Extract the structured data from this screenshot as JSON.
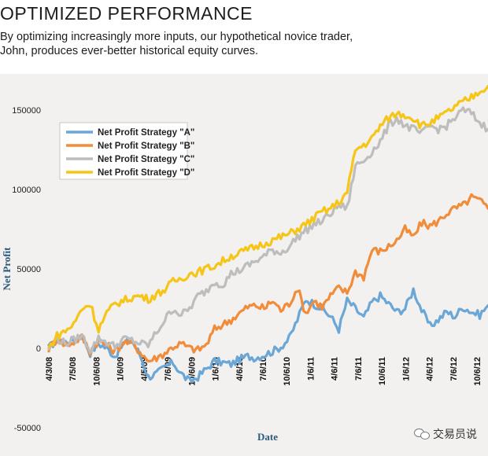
{
  "header": {
    "title": "OPTIMIZED PERFORMANCE",
    "subtitle": "By optimizing increasingly more inputs, our hypothetical novice trader, John, produces ever-better historical equity curves."
  },
  "watermark": {
    "text": "交易员说",
    "icon": "wechat-icon"
  },
  "chart_data": {
    "type": "line",
    "xlabel": "Date",
    "ylabel": "Net Profit",
    "ylim": [
      -50000,
      160000
    ],
    "yticks": [
      -50000,
      0,
      50000,
      100000,
      150000
    ],
    "yticklabels": [
      "-50000",
      "0",
      "50000",
      "100000",
      "150000"
    ],
    "xticks": [
      "4/3/08",
      "7/5/08",
      "10/6/08",
      "1/6/09",
      "4/5/09",
      "7/6/09",
      "10/6/09",
      "1/6/10",
      "4/6/10",
      "7/6/10",
      "10/6/10",
      "1/6/11",
      "4/6/11",
      "7/6/11",
      "10/6/11",
      "1/6/12",
      "4/6/12",
      "7/6/12",
      "10/6/12"
    ],
    "grid": false,
    "legend_position": "top-left",
    "series": [
      {
        "name": "Net Profit Strategy \"A\"",
        "color": "#6aa6d6",
        "values": [
          0,
          6000,
          4000,
          5000,
          8000,
          -3000,
          3000,
          0,
          -5000,
          3000,
          5000,
          -4000,
          -18000,
          -16000,
          -12000,
          -9000,
          -16000,
          -21000,
          -18000,
          -13000,
          -8000,
          -9000,
          -10000,
          -7000,
          -5000,
          -6000,
          -4000,
          -2000,
          1000,
          6000,
          18000,
          31000,
          28000,
          25000,
          20000,
          12000,
          30000,
          25000,
          19000,
          29000,
          33000,
          28000,
          23000,
          25000,
          37000,
          24000,
          14000,
          18000,
          23000,
          20000,
          26000,
          23000,
          21000,
          27000
        ]
      },
      {
        "name": "Net Profit Strategy \"B\"",
        "color": "#f08c3a",
        "values": [
          0,
          6000,
          2000,
          4000,
          7000,
          -2000,
          5000,
          2000,
          -2000,
          4000,
          3000,
          -2000,
          -8000,
          -6000,
          -3000,
          1000,
          3000,
          0,
          -1000,
          2000,
          12000,
          15000,
          18000,
          22000,
          26000,
          27000,
          25000,
          30000,
          24000,
          28000,
          38000,
          22000,
          30000,
          26000,
          33000,
          38000,
          35000,
          48000,
          45000,
          62000,
          61000,
          64000,
          68000,
          75000,
          70000,
          79000,
          77000,
          80000,
          85000,
          88000,
          90000,
          95000,
          93000,
          88000
        ]
      },
      {
        "name": "Net Profit Strategy \"C\"",
        "color": "#bdbdbd",
        "values": [
          0,
          6000,
          3000,
          5000,
          8000,
          -1000,
          6000,
          4000,
          1000,
          6000,
          5000,
          3000,
          2000,
          10000,
          18000,
          25000,
          21000,
          25000,
          33000,
          36000,
          42000,
          40000,
          47000,
          49000,
          52000,
          55000,
          58000,
          62000,
          60000,
          64000,
          70000,
          74000,
          78000,
          80000,
          85000,
          90000,
          88000,
          115000,
          118000,
          124000,
          130000,
          140000,
          145000,
          140000,
          138000,
          135000,
          140000,
          138000,
          140000,
          145000,
          150000,
          148000,
          142000,
          138000
        ]
      },
      {
        "name": "Net Profit Strategy \"D\"",
        "color": "#f5c518",
        "values": [
          0,
          8000,
          11000,
          15000,
          25000,
          28000,
          12000,
          22000,
          28000,
          30000,
          32000,
          33000,
          31000,
          34000,
          37000,
          42000,
          44000,
          47000,
          48000,
          50000,
          52000,
          55000,
          58000,
          60000,
          62000,
          64000,
          66000,
          68000,
          70000,
          72000,
          75000,
          78000,
          82000,
          86000,
          88000,
          92000,
          98000,
          125000,
          128000,
          132000,
          140000,
          145000,
          148000,
          147000,
          145000,
          140000,
          142000,
          145000,
          148000,
          152000,
          155000,
          158000,
          162000,
          165000
        ]
      }
    ]
  }
}
